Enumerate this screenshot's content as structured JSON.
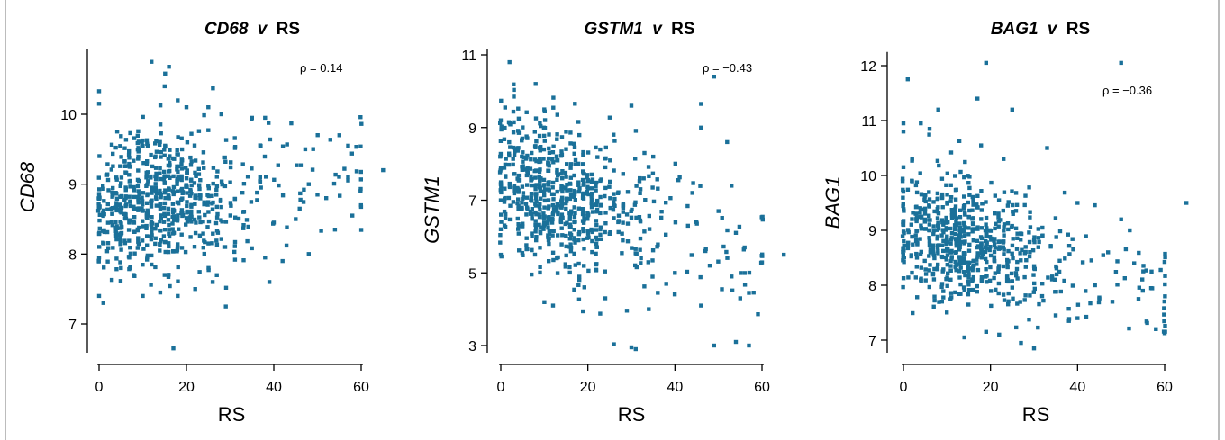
{
  "chart_data": [
    {
      "type": "scatter",
      "title_gene": "CD68",
      "title_sep": "v",
      "title_rest": "RS",
      "xlabel": "RS",
      "ylabel": "CD68",
      "rho": "ρ = 0.14",
      "xlim": [
        -2,
        67
      ],
      "ylim": [
        6.55,
        10.95
      ],
      "xticks": [
        0,
        20,
        40,
        60
      ],
      "yticks": [
        7,
        8,
        9,
        10
      ],
      "color": "#1a7099",
      "summary": {
        "n": 700,
        "x_center": 15,
        "x_spread": 9,
        "y_center": 8.8,
        "y_spread": 0.5,
        "rho": 0.14
      },
      "points": [
        [
          12,
          10.75
        ],
        [
          16,
          10.68
        ],
        [
          15,
          10.4
        ],
        [
          18,
          10.2
        ],
        [
          0,
          10.33
        ],
        [
          0,
          10.15
        ],
        [
          20,
          10.1
        ],
        [
          25,
          10.1
        ],
        [
          28,
          10.0
        ],
        [
          35,
          9.95
        ],
        [
          38,
          9.95
        ],
        [
          44,
          9.87
        ],
        [
          55,
          9.7
        ],
        [
          57,
          9.55
        ],
        [
          65,
          9.2
        ],
        [
          57,
          9.1
        ],
        [
          48,
          9.0
        ],
        [
          50,
          8.85
        ],
        [
          52,
          8.8
        ],
        [
          54,
          8.35
        ],
        [
          45,
          8.5
        ],
        [
          40,
          8.45
        ],
        [
          42,
          7.9
        ],
        [
          39,
          7.6
        ],
        [
          38,
          7.95
        ],
        [
          48,
          8.0
        ],
        [
          29,
          7.25
        ],
        [
          17,
          6.65
        ],
        [
          0,
          7.4
        ],
        [
          1,
          7.3
        ],
        [
          0,
          7.95
        ],
        [
          5,
          7.8
        ],
        [
          10,
          7.4
        ],
        [
          14,
          7.45
        ],
        [
          18,
          7.4
        ],
        [
          22,
          7.5
        ],
        [
          26,
          7.6
        ],
        [
          15,
          7.7
        ],
        [
          12,
          7.85
        ]
      ]
    },
    {
      "type": "scatter",
      "title_gene": "GSTM1",
      "title_sep": "v",
      "title_rest": "RS",
      "xlabel": "RS",
      "ylabel": "GSTM1",
      "rho": "ρ = −0.43",
      "xlim": [
        -2,
        67
      ],
      "ylim": [
        2.7,
        11.2
      ],
      "xticks": [
        0,
        20,
        40,
        60
      ],
      "yticks": [
        3,
        5,
        7,
        9,
        11
      ],
      "color": "#1a7099",
      "summary": {
        "n": 700,
        "x_center": 15,
        "x_spread": 9,
        "y_center": 7.0,
        "y_spread": 1.1,
        "rho": -0.43
      },
      "points": [
        [
          2,
          10.8
        ],
        [
          8,
          10.2
        ],
        [
          3,
          9.85
        ],
        [
          1,
          9.55
        ],
        [
          0,
          9.2
        ],
        [
          10,
          9.5
        ],
        [
          13,
          9.35
        ],
        [
          30,
          9.6
        ],
        [
          46,
          9.65
        ],
        [
          49,
          10.4
        ],
        [
          46,
          9.0
        ],
        [
          52,
          8.6
        ],
        [
          33,
          8.3
        ],
        [
          35,
          8.2
        ],
        [
          44,
          7.2
        ],
        [
          53,
          7.4
        ],
        [
          50,
          6.7
        ],
        [
          54,
          6.1
        ],
        [
          56,
          5.7
        ],
        [
          65,
          5.5
        ],
        [
          55,
          4.3
        ],
        [
          57,
          4.45
        ],
        [
          53,
          4.9
        ],
        [
          54,
          3.1
        ],
        [
          57,
          3.0
        ],
        [
          49,
          3.0
        ],
        [
          46,
          4.1
        ],
        [
          30,
          2.95
        ],
        [
          31,
          2.9
        ],
        [
          34,
          4.0
        ],
        [
          12,
          4.1
        ],
        [
          24,
          4.3
        ],
        [
          0,
          5.5
        ],
        [
          0,
          6.2
        ],
        [
          47,
          5.6
        ],
        [
          48,
          5.2
        ],
        [
          40,
          5.0
        ],
        [
          38,
          4.7
        ]
      ]
    },
    {
      "type": "scatter",
      "title_gene": "BAG1",
      "title_sep": "v",
      "title_rest": "RS",
      "xlabel": "RS",
      "ylabel": "BAG1",
      "rho": "ρ = −0.36",
      "xlim": [
        -2,
        67
      ],
      "ylim": [
        6.7,
        12.25
      ],
      "xticks": [
        0,
        20,
        40,
        60
      ],
      "yticks": [
        7,
        8,
        9,
        10,
        11,
        12
      ],
      "color": "#1a7099",
      "summary": {
        "n": 700,
        "x_center": 15,
        "x_spread": 9,
        "y_center": 8.75,
        "y_spread": 0.6,
        "rho": -0.36
      },
      "points": [
        [
          1,
          11.75
        ],
        [
          19,
          12.05
        ],
        [
          50,
          12.05
        ],
        [
          17,
          11.4
        ],
        [
          25,
          11.2
        ],
        [
          0,
          10.95
        ],
        [
          0,
          10.8
        ],
        [
          8,
          11.2
        ],
        [
          6,
          10.85
        ],
        [
          4,
          10.95
        ],
        [
          2,
          10.3
        ],
        [
          0,
          10.15
        ],
        [
          65,
          9.5
        ],
        [
          57,
          8.25
        ],
        [
          55,
          7.9
        ],
        [
          58,
          7.2
        ],
        [
          50,
          9.2
        ],
        [
          52,
          9.0
        ],
        [
          47,
          8.6
        ],
        [
          53,
          8.4
        ],
        [
          45,
          7.75
        ],
        [
          40,
          9.5
        ],
        [
          30,
          6.85
        ],
        [
          27,
          6.95
        ],
        [
          22,
          7.1
        ],
        [
          14,
          7.05
        ],
        [
          19,
          7.15
        ],
        [
          40,
          7.4
        ],
        [
          44,
          8.0
        ],
        [
          38,
          7.35
        ],
        [
          48,
          7.7
        ],
        [
          54,
          7.75
        ],
        [
          33,
          10.5
        ],
        [
          23,
          10.3
        ]
      ]
    }
  ]
}
